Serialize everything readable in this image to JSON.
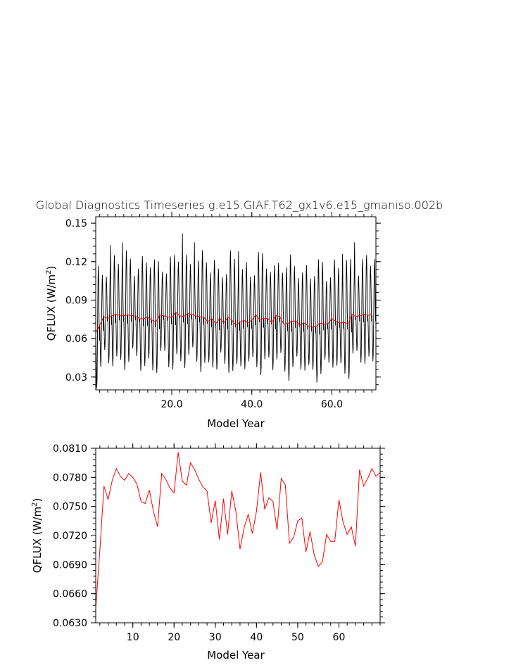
{
  "figure_title": "Global Diagnostics Timeseries g.e15.GIAF.T62_gx1v6.e15_gmaniso.002b",
  "chart_data": [
    {
      "type": "line",
      "xlabel": "Model Year",
      "ylabel": "QFLUX (W/m²)",
      "ylabel_main": "QFLUX (W/m",
      "ylabel_sup": "2",
      "ylabel_close": ")",
      "xlim": [
        1,
        71
      ],
      "ylim": [
        0.02,
        0.155
      ],
      "xticks": [
        20,
        40,
        60
      ],
      "xtick_labels": [
        "20.0",
        "40.0",
        "60.0"
      ],
      "yticks": [
        0.03,
        0.06,
        0.09,
        0.12,
        0.15
      ],
      "ytick_labels": [
        "0.03",
        "0.06",
        "0.09",
        "0.12",
        "0.15"
      ],
      "grid": false,
      "series": [
        {
          "key": "monthly",
          "color": "#000000",
          "resolution": "monthly",
          "annual_cycle_anomaly": [
            0.0,
            -0.01,
            -0.025,
            -0.035,
            -0.03,
            -0.01,
            0.015,
            0.035,
            0.042,
            0.03,
            0.01,
            -0.005
          ],
          "peak_years": [
            22,
            7,
            25,
            65,
            4,
            36,
            62
          ],
          "peak_values": [
            0.142,
            0.135,
            0.135,
            0.135,
            0.133,
            0.128,
            0.126
          ]
        },
        {
          "key": "annual_mean",
          "color": "#ff0000",
          "resolution": "annual",
          "x": [
            1,
            2,
            3,
            4,
            5,
            6,
            7,
            8,
            9,
            10,
            11,
            12,
            13,
            14,
            15,
            16,
            17,
            18,
            19,
            20,
            21,
            22,
            23,
            24,
            25,
            26,
            27,
            28,
            29,
            30,
            31,
            32,
            33,
            34,
            35,
            36,
            37,
            38,
            39,
            40,
            41,
            42,
            43,
            44,
            45,
            46,
            47,
            48,
            49,
            50,
            51,
            52,
            53,
            54,
            55,
            56,
            57,
            58,
            59,
            60,
            61,
            62,
            63,
            64,
            65,
            66,
            67,
            68,
            69,
            70
          ],
          "values": [
            0.0645,
            0.0705,
            0.0771,
            0.0757,
            0.0777,
            0.0789,
            0.0781,
            0.0777,
            0.0784,
            0.078,
            0.0773,
            0.0755,
            0.0753,
            0.0767,
            0.0745,
            0.0729,
            0.0784,
            0.0778,
            0.0769,
            0.0764,
            0.0806,
            0.0776,
            0.0772,
            0.0795,
            0.0788,
            0.0778,
            0.077,
            0.0766,
            0.0733,
            0.0756,
            0.0716,
            0.0758,
            0.0721,
            0.0766,
            0.0745,
            0.0706,
            0.0728,
            0.0742,
            0.0722,
            0.0745,
            0.0785,
            0.0747,
            0.0759,
            0.0755,
            0.0726,
            0.0779,
            0.0772,
            0.0712,
            0.0718,
            0.0735,
            0.0738,
            0.0703,
            0.0724,
            0.07,
            0.0688,
            0.0693,
            0.0721,
            0.0714,
            0.0714,
            0.0757,
            0.0734,
            0.0721,
            0.0729,
            0.0709,
            0.0788,
            0.0771,
            0.0779,
            0.0789,
            0.0781,
            0.0785
          ]
        }
      ]
    },
    {
      "type": "line",
      "xlabel": "Model Year",
      "ylabel": "QFLUX (W/m²)",
      "ylabel_main": "QFLUX (W/m",
      "ylabel_sup": "2",
      "ylabel_close": ")",
      "xlim": [
        1,
        70
      ],
      "ylim": [
        0.063,
        0.081
      ],
      "xticks": [
        10,
        20,
        30,
        40,
        50,
        60
      ],
      "xtick_labels": [
        "10",
        "20",
        "30",
        "40",
        "50",
        "60"
      ],
      "yticks": [
        0.063,
        0.066,
        0.069,
        0.072,
        0.075,
        0.078,
        0.081
      ],
      "ytick_labels": [
        "0.0630",
        "0.0660",
        "0.0690",
        "0.0720",
        "0.0750",
        "0.0780",
        "0.0810"
      ],
      "grid": false,
      "series": [
        {
          "key": "annual_mean",
          "color": "#ff0000",
          "x": [
            1,
            2,
            3,
            4,
            5,
            6,
            7,
            8,
            9,
            10,
            11,
            12,
            13,
            14,
            15,
            16,
            17,
            18,
            19,
            20,
            21,
            22,
            23,
            24,
            25,
            26,
            27,
            28,
            29,
            30,
            31,
            32,
            33,
            34,
            35,
            36,
            37,
            38,
            39,
            40,
            41,
            42,
            43,
            44,
            45,
            46,
            47,
            48,
            49,
            50,
            51,
            52,
            53,
            54,
            55,
            56,
            57,
            58,
            59,
            60,
            61,
            62,
            63,
            64,
            65,
            66,
            67,
            68,
            69,
            70
          ],
          "values": [
            0.0645,
            0.0705,
            0.0771,
            0.0757,
            0.0777,
            0.0789,
            0.0781,
            0.0777,
            0.0784,
            0.078,
            0.0773,
            0.0755,
            0.0753,
            0.0767,
            0.0745,
            0.0729,
            0.0784,
            0.0778,
            0.0769,
            0.0764,
            0.0806,
            0.0776,
            0.0772,
            0.0795,
            0.0788,
            0.0778,
            0.077,
            0.0766,
            0.0733,
            0.0756,
            0.0716,
            0.0758,
            0.0721,
            0.0766,
            0.0745,
            0.0706,
            0.0728,
            0.0742,
            0.0722,
            0.0745,
            0.0785,
            0.0747,
            0.0759,
            0.0755,
            0.0726,
            0.0779,
            0.0772,
            0.0712,
            0.0718,
            0.0735,
            0.0738,
            0.0703,
            0.0724,
            0.07,
            0.0688,
            0.0693,
            0.0721,
            0.0714,
            0.0714,
            0.0757,
            0.0734,
            0.0721,
            0.0729,
            0.0709,
            0.0788,
            0.0771,
            0.0779,
            0.0789,
            0.0781,
            0.0785
          ]
        }
      ]
    }
  ]
}
